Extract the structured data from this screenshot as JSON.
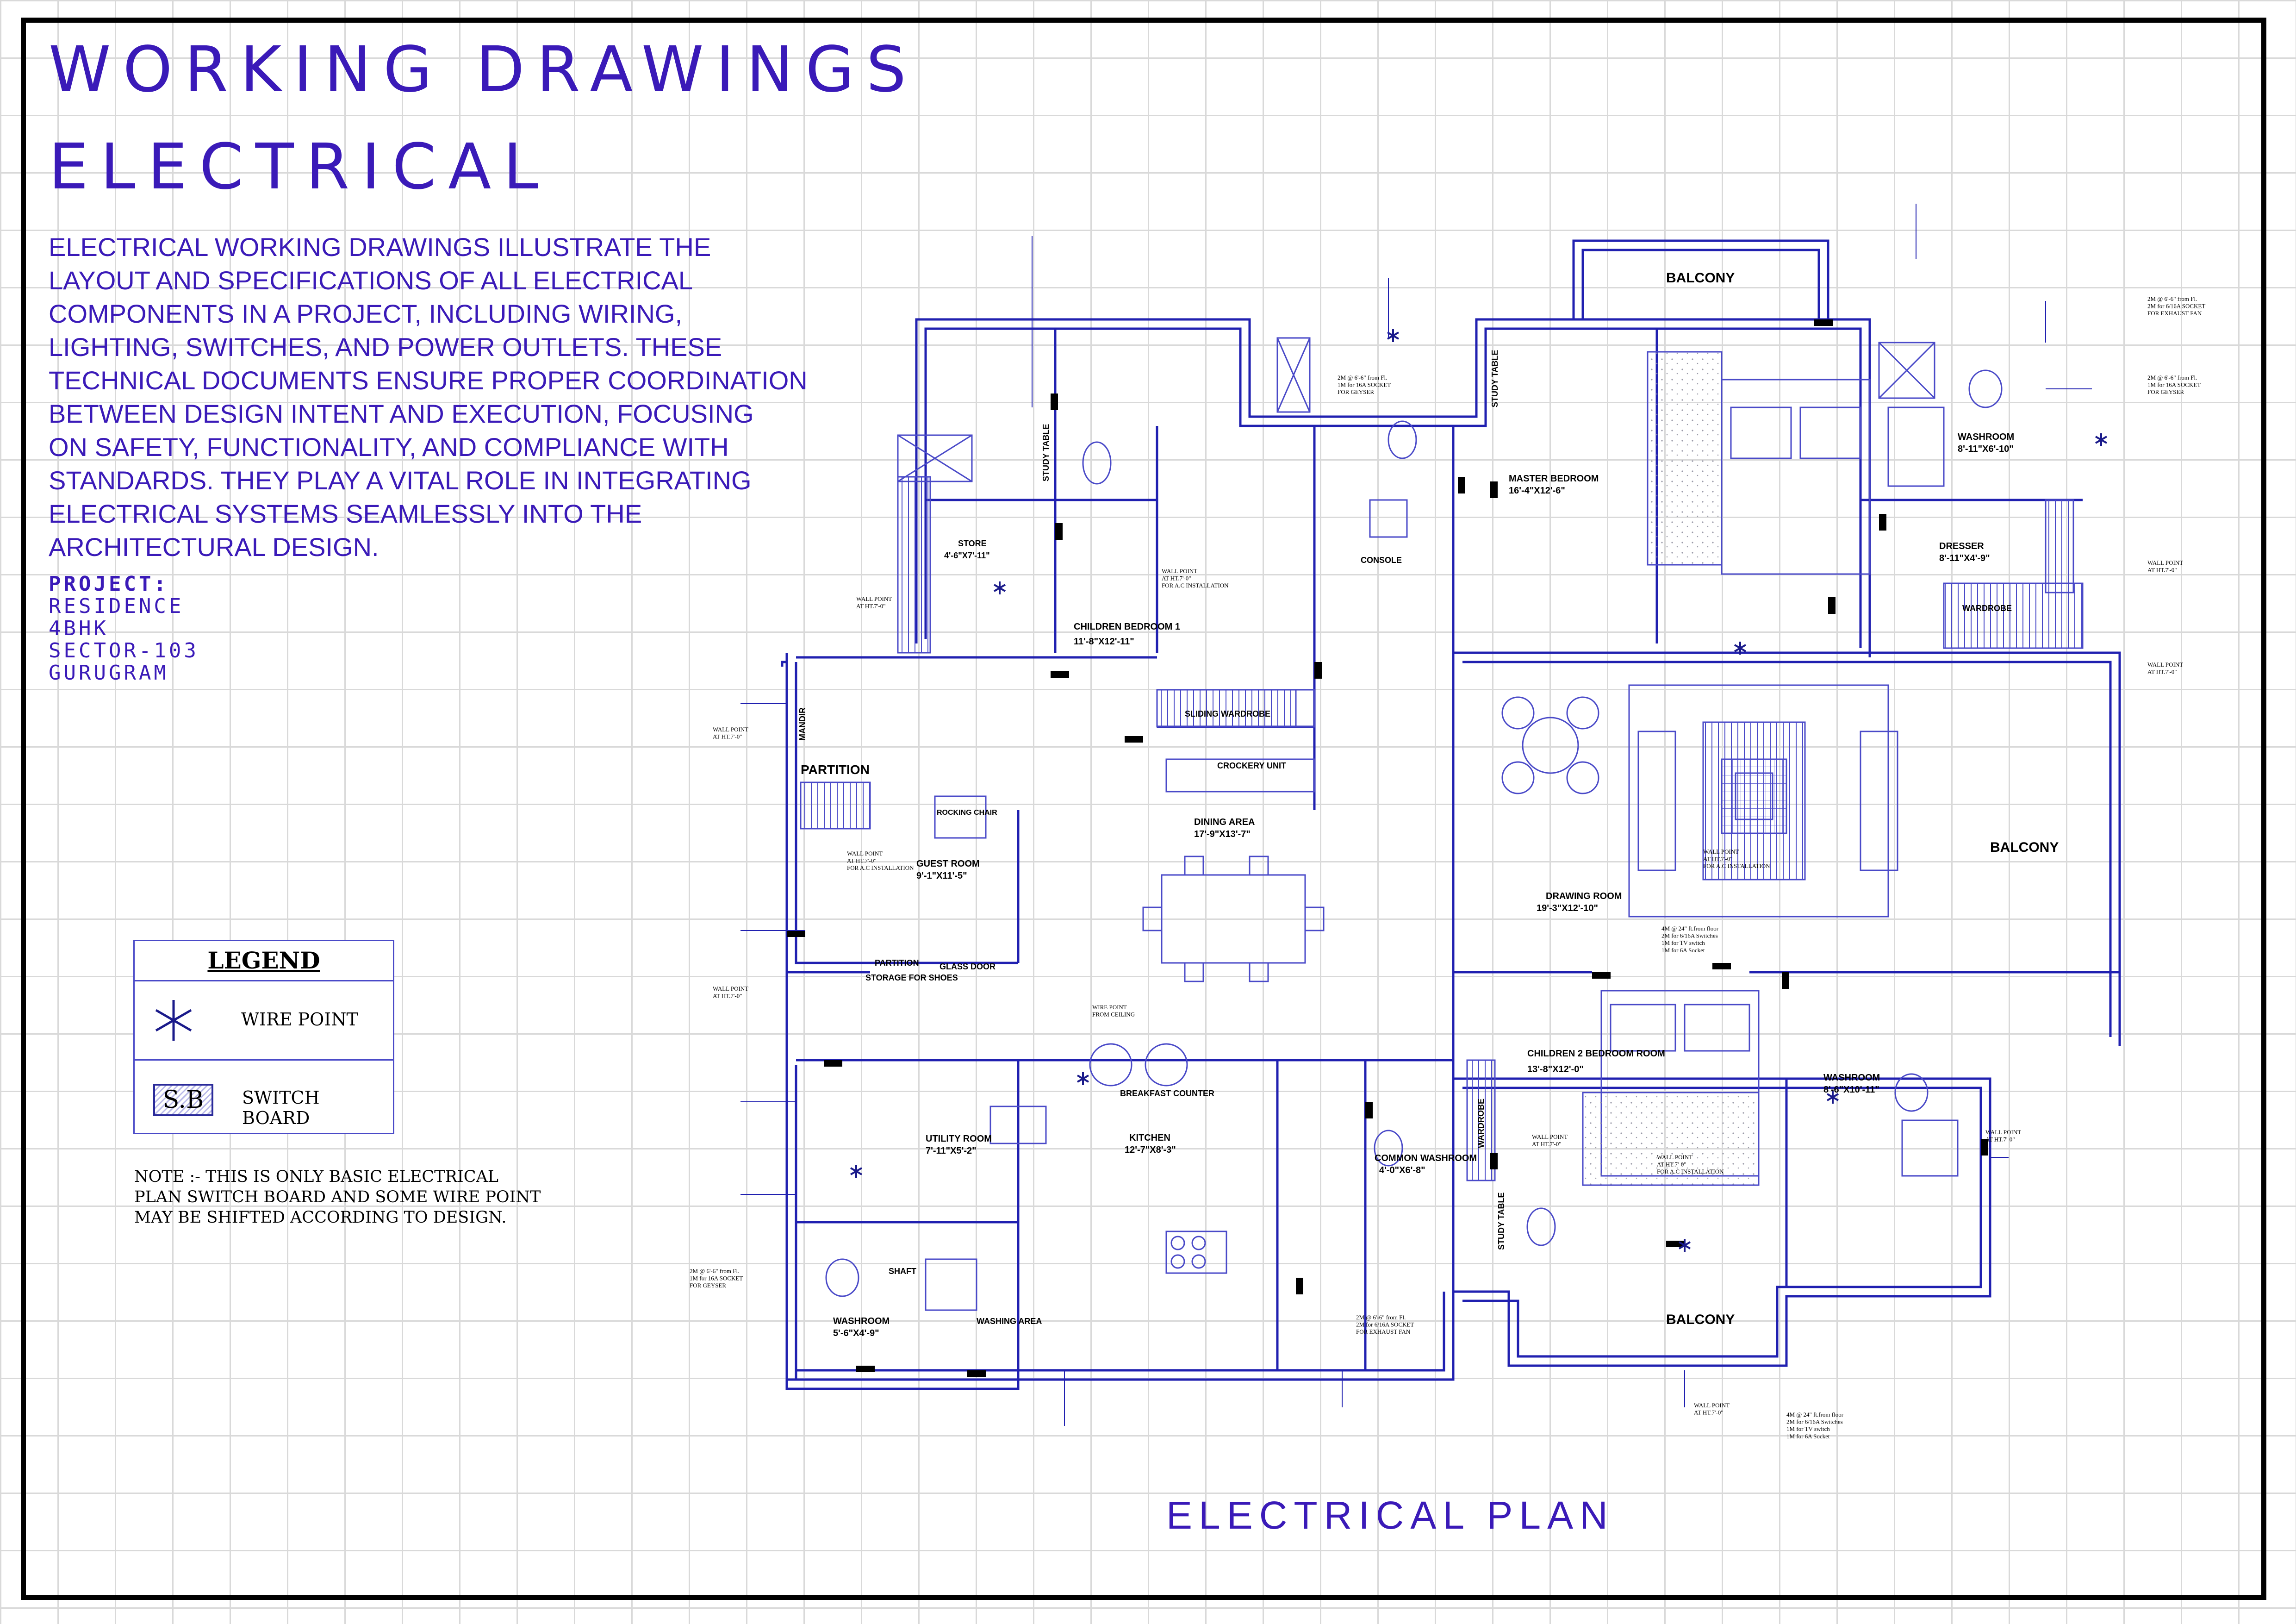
{
  "header": {
    "title_line1": "WORKING DRAWINGS",
    "title_line2": "ELECTRICAL"
  },
  "intro": "ELECTRICAL WORKING DRAWINGS ILLUSTRATE THE\nLAYOUT AND SPECIFICATIONS OF ALL ELECTRICAL\nCOMPONENTS IN A PROJECT, INCLUDING WIRING,\nLIGHTING, SWITCHES, AND POWER OUTLETS. THESE\nTECHNICAL DOCUMENTS ENSURE PROPER COORDINATION\nBETWEEN DESIGN INTENT AND EXECUTION, FOCUSING\nON SAFETY, FUNCTIONALITY, AND COMPLIANCE WITH\nSTANDARDS. THEY PLAY A VITAL ROLE IN INTEGRATING\nELECTRICAL SYSTEMS SEAMLESSLY INTO THE\n ARCHITECTURAL DESIGN.",
  "project": {
    "label": "PROJECT:",
    "lines": [
      "RESIDENCE",
      "4BHK",
      "SECTOR-103",
      "GURUGRAM"
    ]
  },
  "legend": {
    "title": "LEGEND",
    "wire_point": "WIRE POINT",
    "switch_board_symbol": "S.B",
    "switch_board": "SWITCH BOARD"
  },
  "note": "NOTE :- THIS IS ONLY BASIC ELECTRICAL\nPLAN SWITCH BOARD AND SOME WIRE POINT\nMAY BE SHIFTED ACCORDING TO DESIGN.",
  "plan": {
    "title": "ELECTRICAL PLAN",
    "rooms": {
      "balcony_top": "BALCONY",
      "balcony_right": "BALCONY",
      "balcony_bottom": "BALCONY",
      "master_bedroom": "MASTER BEDROOM",
      "master_bedroom_size": "16'-4\"X12'-6\"",
      "washroom_master": "WASHROOM",
      "washroom_master_size": "8'-11\"X6'-10\"",
      "dresser": "DRESSER",
      "dresser_size": "8'-11\"X4'-9\"",
      "wardrobe_master": "WARDROBE",
      "console": "CONSOLE",
      "children_bedroom_1": "CHILDREN BEDROOM 1",
      "children_bedroom_1_size": "11'-8\"X12'-11\"",
      "store": "STORE",
      "store_size": "4'-6\"X7'-11\"",
      "study_table_1": "STUDY TABLE",
      "study_table_2": "STUDY TABLE",
      "study_table_3": "STUDY TABLE",
      "sliding_wardrobe": "SLIDING WARDROBE",
      "crockery_unit": "CROCKERY UNIT",
      "dining_area": "DINING AREA",
      "dining_area_size": "17'-9\"X13'-7\"",
      "drawing_room": "DRAWING ROOM",
      "drawing_room_size": "19'-3\"X12'-10\"",
      "partition_1": "PARTITION",
      "partition_2": "PARTITION",
      "mandir": "MANDIR",
      "rocking_chair": "ROCKING CHAIR",
      "guest_room": "GUEST ROOM",
      "guest_room_size": "9'-1\"X11'-5\"",
      "glass_door": "GLASS DOOR",
      "storage_for_shoes": "STORAGE FOR SHOES",
      "breakfast_counter": "BREAKFAST COUNTER",
      "kitchen": "KITCHEN",
      "kitchen_size": "12'-7\"X8'-3\"",
      "utility_room": "UTILITY ROOM",
      "utility_room_size": "7'-11\"X5'-2\"",
      "washroom_guest": "WASHROOM",
      "washroom_guest_size": "5'-6\"X4'-9\"",
      "washing_area": "WASHING AREA",
      "common_washroom": "COMMON WASHROOM",
      "common_washroom_size": "4'-0\"X6'-8\"",
      "children_bedroom_2": "CHILDREN 2 BEDROOM ROOM",
      "children_bedroom_2_size": "13'-8\"X12'-0\"",
      "washroom_children_2": "WASHROOM",
      "washroom_children_2_size": "8'-6\"X10'-11\"",
      "wardrobe_children_2": "WARDROBE",
      "shaft": "SHAFT"
    },
    "annotations": {
      "wall_point": "WALL POINT\nAT HT.7'-0\"",
      "wall_point_ac": "WALL POINT\nAT HT.7'-0\"\nFOR A.C INSTALLATION",
      "wire_point_ceiling": "WIRE POINT\nFROM CEILING",
      "bed_switch": "4M @ 24\" ft.from floor\n2M for 6/16A Switches\n1M for TV switch\n1M for 6A Socket",
      "geyser": "2M @ 6'-6\" from Fl.\n1M for 16A SOCKET\nFOR GEYSER",
      "exhaust": "2M @ 6'-6\" from Fl.\n2M for 6/16A SOCKET\nFOR EXHAUST FAN"
    }
  }
}
